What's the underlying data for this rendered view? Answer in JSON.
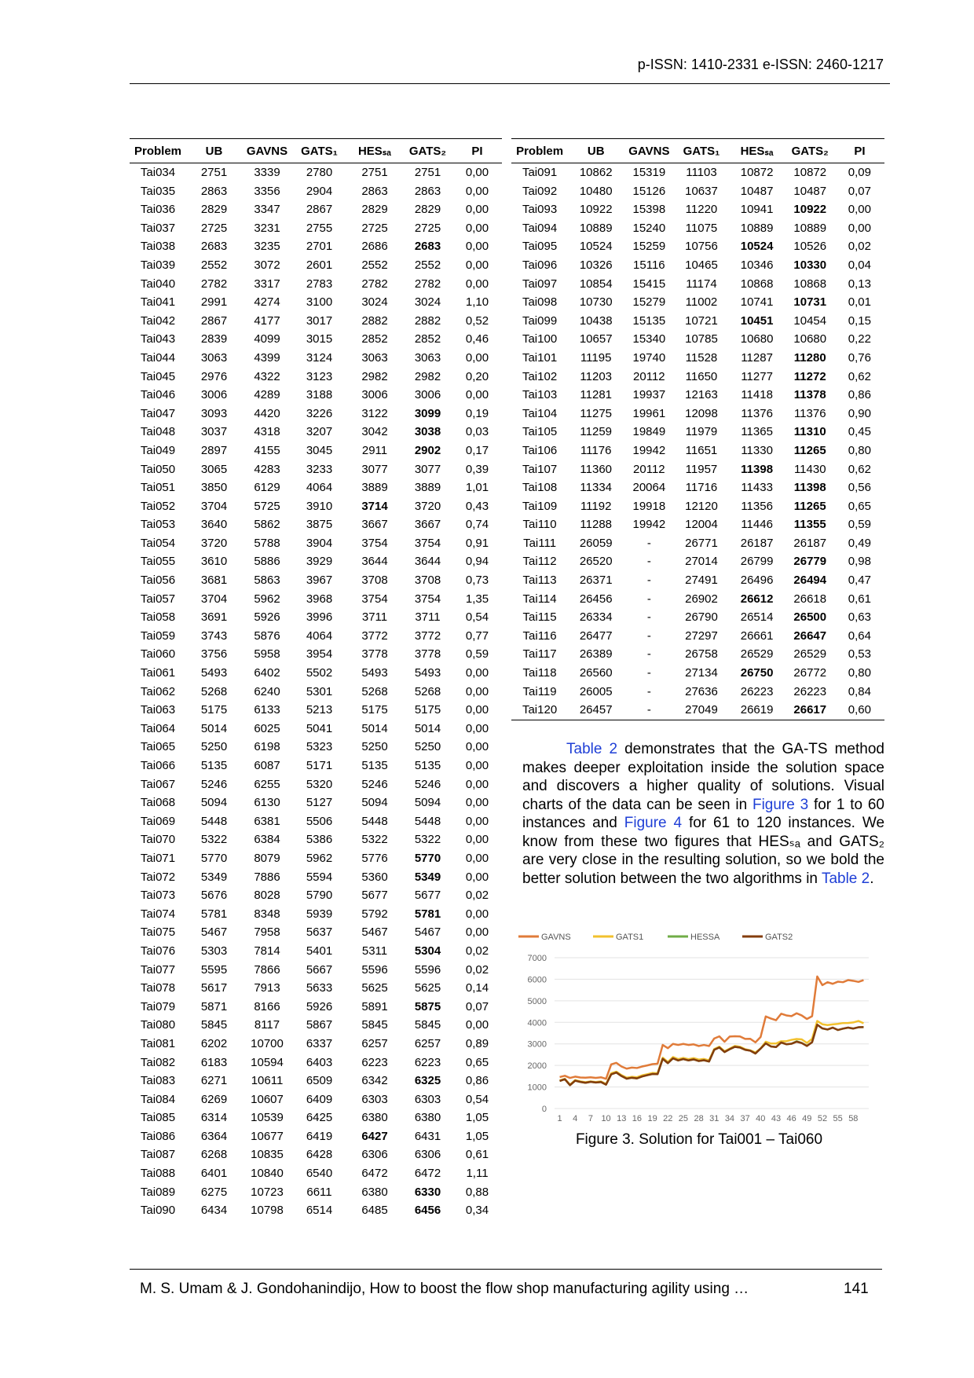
{
  "header": {
    "issn": "p-ISSN: 1410-2331  e-ISSN: 2460-1217"
  },
  "left_table": {
    "header": [
      "Problem",
      "UB",
      "GAVNS",
      "GATS₁",
      "HESₛₐ",
      "GATS₂",
      "PI"
    ],
    "rows": [
      [
        "Tai034",
        "2751",
        "3339",
        "2780",
        "2751",
        "2751",
        "0,00"
      ],
      [
        "Tai035",
        "2863",
        "3356",
        "2904",
        "2863",
        "2863",
        "0,00"
      ],
      [
        "Tai036",
        "2829",
        "3347",
        "2867",
        "2829",
        "2829",
        "0,00"
      ],
      [
        "Tai037",
        "2725",
        "3231",
        "2755",
        "2725",
        "2725",
        "0,00"
      ],
      [
        "Tai038",
        "2683",
        "3235",
        "2701",
        "2686",
        "2683",
        "0,00"
      ],
      [
        "Tai039",
        "2552",
        "3072",
        "2601",
        "2552",
        "2552",
        "0,00"
      ],
      [
        "Tai040",
        "2782",
        "3317",
        "2783",
        "2782",
        "2782",
        "0,00"
      ],
      [
        "Tai041",
        "2991",
        "4274",
        "3100",
        "3024",
        "3024",
        "1,10"
      ],
      [
        "Tai042",
        "2867",
        "4177",
        "3017",
        "2882",
        "2882",
        "0,52"
      ],
      [
        "Tai043",
        "2839",
        "4099",
        "3015",
        "2852",
        "2852",
        "0,46"
      ],
      [
        "Tai044",
        "3063",
        "4399",
        "3124",
        "3063",
        "3063",
        "0,00"
      ],
      [
        "Tai045",
        "2976",
        "4322",
        "3123",
        "2982",
        "2982",
        "0,20"
      ],
      [
        "Tai046",
        "3006",
        "4289",
        "3188",
        "3006",
        "3006",
        "0,00"
      ],
      [
        "Tai047",
        "3093",
        "4420",
        "3226",
        "3122",
        "3099",
        "0,19"
      ],
      [
        "Tai048",
        "3037",
        "4318",
        "3207",
        "3042",
        "3038",
        "0,03"
      ],
      [
        "Tai049",
        "2897",
        "4155",
        "3045",
        "2911",
        "2902",
        "0,17"
      ],
      [
        "Tai050",
        "3065",
        "4283",
        "3233",
        "3077",
        "3077",
        "0,39"
      ],
      [
        "Tai051",
        "3850",
        "6129",
        "4064",
        "3889",
        "3889",
        "1,01"
      ],
      [
        "Tai052",
        "3704",
        "5725",
        "3910",
        "3714",
        "3720",
        "0,43"
      ],
      [
        "Tai053",
        "3640",
        "5862",
        "3875",
        "3667",
        "3667",
        "0,74"
      ],
      [
        "Tai054",
        "3720",
        "5788",
        "3904",
        "3754",
        "3754",
        "0,91"
      ],
      [
        "Tai055",
        "3610",
        "5886",
        "3929",
        "3644",
        "3644",
        "0,94"
      ],
      [
        "Tai056",
        "3681",
        "5863",
        "3967",
        "3708",
        "3708",
        "0,73"
      ],
      [
        "Tai057",
        "3704",
        "5962",
        "3968",
        "3754",
        "3754",
        "1,35"
      ],
      [
        "Tai058",
        "3691",
        "5926",
        "3996",
        "3711",
        "3711",
        "0,54"
      ],
      [
        "Tai059",
        "3743",
        "5876",
        "4064",
        "3772",
        "3772",
        "0,77"
      ],
      [
        "Tai060",
        "3756",
        "5958",
        "3954",
        "3778",
        "3778",
        "0,59"
      ],
      [
        "Tai061",
        "5493",
        "6402",
        "5502",
        "5493",
        "5493",
        "0,00"
      ],
      [
        "Tai062",
        "5268",
        "6240",
        "5301",
        "5268",
        "5268",
        "0,00"
      ],
      [
        "Tai063",
        "5175",
        "6133",
        "5213",
        "5175",
        "5175",
        "0,00"
      ],
      [
        "Tai064",
        "5014",
        "6025",
        "5041",
        "5014",
        "5014",
        "0,00"
      ],
      [
        "Tai065",
        "5250",
        "6198",
        "5323",
        "5250",
        "5250",
        "0,00"
      ],
      [
        "Tai066",
        "5135",
        "6087",
        "5171",
        "5135",
        "5135",
        "0,00"
      ],
      [
        "Tai067",
        "5246",
        "6255",
        "5320",
        "5246",
        "5246",
        "0,00"
      ],
      [
        "Tai068",
        "5094",
        "6130",
        "5127",
        "5094",
        "5094",
        "0,00"
      ],
      [
        "Tai069",
        "5448",
        "6381",
        "5506",
        "5448",
        "5448",
        "0,00"
      ],
      [
        "Tai070",
        "5322",
        "6384",
        "5386",
        "5322",
        "5322",
        "0,00"
      ],
      [
        "Tai071",
        "5770",
        "8079",
        "5962",
        "5776",
        "5770",
        "0,00"
      ],
      [
        "Tai072",
        "5349",
        "7886",
        "5594",
        "5360",
        "5349",
        "0,00"
      ],
      [
        "Tai073",
        "5676",
        "8028",
        "5790",
        "5677",
        "5677",
        "0,02"
      ],
      [
        "Tai074",
        "5781",
        "8348",
        "5939",
        "5792",
        "5781",
        "0,00"
      ],
      [
        "Tai075",
        "5467",
        "7958",
        "5637",
        "5467",
        "5467",
        "0,00"
      ],
      [
        "Tai076",
        "5303",
        "7814",
        "5401",
        "5311",
        "5304",
        "0,02"
      ],
      [
        "Tai077",
        "5595",
        "7866",
        "5667",
        "5596",
        "5596",
        "0,02"
      ],
      [
        "Tai078",
        "5617",
        "7913",
        "5633",
        "5625",
        "5625",
        "0,14"
      ],
      [
        "Tai079",
        "5871",
        "8166",
        "5926",
        "5891",
        "5875",
        "0,07"
      ],
      [
        "Tai080",
        "5845",
        "8117",
        "5867",
        "5845",
        "5845",
        "0,00"
      ],
      [
        "Tai081",
        "6202",
        "10700",
        "6337",
        "6257",
        "6257",
        "0,89"
      ],
      [
        "Tai082",
        "6183",
        "10594",
        "6403",
        "6223",
        "6223",
        "0,65"
      ],
      [
        "Tai083",
        "6271",
        "10611",
        "6509",
        "6342",
        "6325",
        "0,86"
      ],
      [
        "Tai084",
        "6269",
        "10607",
        "6409",
        "6303",
        "6303",
        "0,54"
      ],
      [
        "Tai085",
        "6314",
        "10539",
        "6425",
        "6380",
        "6380",
        "1,05"
      ],
      [
        "Tai086",
        "6364",
        "10677",
        "6419",
        "6427",
        "6431",
        "1,05"
      ],
      [
        "Tai087",
        "6268",
        "10835",
        "6428",
        "6306",
        "6306",
        "0,61"
      ],
      [
        "Tai088",
        "6401",
        "10840",
        "6540",
        "6472",
        "6472",
        "1,11"
      ],
      [
        "Tai089",
        "6275",
        "10723",
        "6611",
        "6380",
        "6330",
        "0,88"
      ],
      [
        "Tai090",
        "6434",
        "10798",
        "6514",
        "6485",
        "6456",
        "0,34"
      ]
    ],
    "bold": [
      [
        4,
        5
      ],
      [
        13,
        5
      ],
      [
        14,
        5
      ],
      [
        15,
        5
      ],
      [
        18,
        4
      ],
      [
        37,
        5
      ],
      [
        38,
        5
      ],
      [
        40,
        5
      ],
      [
        42,
        5
      ],
      [
        45,
        5
      ],
      [
        49,
        5
      ],
      [
        52,
        4
      ],
      [
        55,
        5
      ],
      [
        56,
        5
      ]
    ]
  },
  "right_table": {
    "header": [
      "Problem",
      "UB",
      "GAVNS",
      "GATS₁",
      "HESₛₐ",
      "GATS₂",
      "PI"
    ],
    "rows": [
      [
        "Tai091",
        "10862",
        "15319",
        "11103",
        "10872",
        "10872",
        "0,09"
      ],
      [
        "Tai092",
        "10480",
        "15126",
        "10637",
        "10487",
        "10487",
        "0,07"
      ],
      [
        "Tai093",
        "10922",
        "15398",
        "11220",
        "10941",
        "10922",
        "0,00"
      ],
      [
        "Tai094",
        "10889",
        "15240",
        "11075",
        "10889",
        "10889",
        "0,00"
      ],
      [
        "Tai095",
        "10524",
        "15259",
        "10756",
        "10524",
        "10526",
        "0,02"
      ],
      [
        "Tai096",
        "10326",
        "15116",
        "10465",
        "10346",
        "10330",
        "0,04"
      ],
      [
        "Tai097",
        "10854",
        "15415",
        "11174",
        "10868",
        "10868",
        "0,13"
      ],
      [
        "Tai098",
        "10730",
        "15279",
        "11002",
        "10741",
        "10731",
        "0,01"
      ],
      [
        "Tai099",
        "10438",
        "15135",
        "10721",
        "10451",
        "10454",
        "0,15"
      ],
      [
        "Tai100",
        "10657",
        "15340",
        "10785",
        "10680",
        "10680",
        "0,22"
      ],
      [
        "Tai101",
        "11195",
        "19740",
        "11528",
        "11287",
        "11280",
        "0,76"
      ],
      [
        "Tai102",
        "11203",
        "20112",
        "11650",
        "11277",
        "11272",
        "0,62"
      ],
      [
        "Tai103",
        "11281",
        "19937",
        "12163",
        "11418",
        "11378",
        "0,86"
      ],
      [
        "Tai104",
        "11275",
        "19961",
        "12098",
        "11376",
        "11376",
        "0,90"
      ],
      [
        "Tai105",
        "11259",
        "19849",
        "11979",
        "11365",
        "11310",
        "0,45"
      ],
      [
        "Tai106",
        "11176",
        "19942",
        "11651",
        "11330",
        "11265",
        "0,80"
      ],
      [
        "Tai107",
        "11360",
        "20112",
        "11957",
        "11398",
        "11430",
        "0,62"
      ],
      [
        "Tai108",
        "11334",
        "20064",
        "11716",
        "11433",
        "11398",
        "0,56"
      ],
      [
        "Tai109",
        "11192",
        "19918",
        "12120",
        "11356",
        "11265",
        "0,65"
      ],
      [
        "Tai110",
        "11288",
        "19942",
        "12004",
        "11446",
        "11355",
        "0,59"
      ],
      [
        "Tai111",
        "26059",
        "-",
        "26771",
        "26187",
        "26187",
        "0,49"
      ],
      [
        "Tai112",
        "26520",
        "-",
        "27014",
        "26799",
        "26779",
        "0,98"
      ],
      [
        "Tai113",
        "26371",
        "-",
        "27491",
        "26496",
        "26494",
        "0,47"
      ],
      [
        "Tai114",
        "26456",
        "-",
        "26902",
        "26612",
        "26618",
        "0,61"
      ],
      [
        "Tai115",
        "26334",
        "-",
        "26790",
        "26514",
        "26500",
        "0,63"
      ],
      [
        "Tai116",
        "26477",
        "-",
        "27297",
        "26661",
        "26647",
        "0,64"
      ],
      [
        "Tai117",
        "26389",
        "-",
        "26758",
        "26529",
        "26529",
        "0,53"
      ],
      [
        "Tai118",
        "26560",
        "-",
        "27134",
        "26750",
        "26772",
        "0,80"
      ],
      [
        "Tai119",
        "26005",
        "-",
        "27636",
        "26223",
        "26223",
        "0,84"
      ],
      [
        "Tai120",
        "26457",
        "-",
        "27049",
        "26619",
        "26617",
        "0,60"
      ]
    ],
    "bold": [
      [
        2,
        5
      ],
      [
        4,
        4
      ],
      [
        5,
        5
      ],
      [
        7,
        5
      ],
      [
        8,
        4
      ],
      [
        10,
        5
      ],
      [
        11,
        5
      ],
      [
        12,
        5
      ],
      [
        14,
        5
      ],
      [
        15,
        5
      ],
      [
        16,
        4
      ],
      [
        17,
        5
      ],
      [
        18,
        5
      ],
      [
        19,
        5
      ],
      [
        21,
        5
      ],
      [
        22,
        5
      ],
      [
        23,
        4
      ],
      [
        24,
        5
      ],
      [
        25,
        5
      ],
      [
        27,
        4
      ],
      [
        29,
        5
      ]
    ]
  },
  "paragraph": [
    "Table 2",
    " demonstrates that the GA-TS method makes deeper exploitation inside the solution space and discovers a higher quality of solutions. Visual charts of the data can be seen in ",
    "Figure 3",
    " for 1 to 60 instances and ",
    "Figure 4",
    " for 61 to 120 instances. We know from these two figures that HESₛₐ and GATS₂ are very close in the resulting solution, so we bold the better solution between the two algorithms in ",
    "Table 2",
    "."
  ],
  "chart_data": {
    "type": "line",
    "caption": "Figure 3. Solution for Tai001 – Tai060",
    "x": [
      1,
      2,
      3,
      4,
      5,
      6,
      7,
      8,
      9,
      10,
      11,
      12,
      13,
      14,
      15,
      16,
      17,
      18,
      19,
      20,
      21,
      22,
      23,
      24,
      25,
      26,
      27,
      28,
      29,
      30,
      31,
      32,
      33,
      34,
      35,
      36,
      37,
      38,
      39,
      40,
      41,
      42,
      43,
      44,
      45,
      46,
      47,
      48,
      49,
      50,
      51,
      52,
      53,
      54,
      55,
      56,
      57,
      58,
      59,
      60
    ],
    "xlim": [
      0,
      61
    ],
    "xticks": [
      1,
      4,
      7,
      10,
      13,
      16,
      19,
      22,
      25,
      28,
      31,
      34,
      37,
      40,
      43,
      46,
      49,
      52,
      55,
      58
    ],
    "ylim": [
      0,
      7000
    ],
    "yticks": [
      0,
      1000,
      2000,
      3000,
      4000,
      5000,
      6000,
      7000
    ],
    "grid": true,
    "legend": "top",
    "series": [
      {
        "name": "GAVNS",
        "color": "#e07b39",
        "values": [
          1460,
          1520,
          1420,
          1480,
          1440,
          1430,
          1450,
          1420,
          1450,
          1380,
          2050,
          2120,
          1950,
          1850,
          1900,
          1880,
          1950,
          2000,
          2060,
          2080,
          2950,
          2800,
          3000,
          2950,
          3000,
          2950,
          2980,
          2900,
          2950,
          2900,
          3250,
          3350,
          3100,
          3339,
          3356,
          3347,
          3231,
          3235,
          3072,
          3317,
          4274,
          4177,
          4099,
          4399,
          4322,
          4289,
          4420,
          4318,
          4155,
          4283,
          6129,
          5725,
          5862,
          5788,
          5886,
          5863,
          5962,
          5926,
          5876,
          5958
        ]
      },
      {
        "name": "GATS1",
        "color": "#f2c12e",
        "values": [
          1300,
          1380,
          1110,
          1320,
          1260,
          1220,
          1260,
          1230,
          1260,
          1140,
          1640,
          1710,
          1550,
          1430,
          1470,
          1450,
          1540,
          1590,
          1650,
          1640,
          2360,
          2160,
          2390,
          2290,
          2350,
          2290,
          2340,
          2270,
          2300,
          2240,
          2760,
          2870,
          2660,
          2780,
          2904,
          2867,
          2755,
          2701,
          2601,
          2783,
          3100,
          3017,
          3015,
          3124,
          3123,
          3188,
          3226,
          3207,
          3045,
          3233,
          4064,
          3910,
          3875,
          3904,
          3929,
          3967,
          3968,
          3996,
          4064,
          3954
        ]
      },
      {
        "name": "HESSA",
        "color": "#70ad47",
        "values": [
          1278,
          1359,
          1081,
          1293,
          1235,
          1195,
          1239,
          1206,
          1230,
          1108,
          1586,
          1671,
          1507,
          1385,
          1428,
          1399,
          1489,
          1546,
          1602,
          1594,
          2306,
          2105,
          2330,
          2230,
          2296,
          2232,
          2280,
          2204,
          2243,
          2182,
          2724,
          2834,
          2621,
          2751,
          2863,
          2829,
          2725,
          2686,
          2552,
          2782,
          3024,
          2882,
          2852,
          3063,
          2982,
          3006,
          3122,
          3042,
          2911,
          3077,
          3889,
          3714,
          3667,
          3754,
          3644,
          3708,
          3754,
          3711,
          3772,
          3778
        ]
      },
      {
        "name": "GATS2",
        "color": "#843c0c",
        "values": [
          1278,
          1359,
          1081,
          1293,
          1235,
          1195,
          1239,
          1206,
          1230,
          1108,
          1586,
          1671,
          1507,
          1385,
          1428,
          1399,
          1489,
          1546,
          1602,
          1594,
          2306,
          2105,
          2330,
          2230,
          2296,
          2232,
          2280,
          2204,
          2243,
          2182,
          2724,
          2834,
          2621,
          2751,
          2863,
          2829,
          2725,
          2683,
          2552,
          2782,
          3024,
          2882,
          2852,
          3063,
          2982,
          3006,
          3099,
          3038,
          2902,
          3077,
          3889,
          3720,
          3667,
          3754,
          3644,
          3708,
          3754,
          3711,
          3772,
          3778
        ]
      }
    ]
  },
  "footer": {
    "citation": "M. S. Umam & J. Gondohanindijo, How to boost the flow shop manufacturing agility using …",
    "page": "141"
  }
}
